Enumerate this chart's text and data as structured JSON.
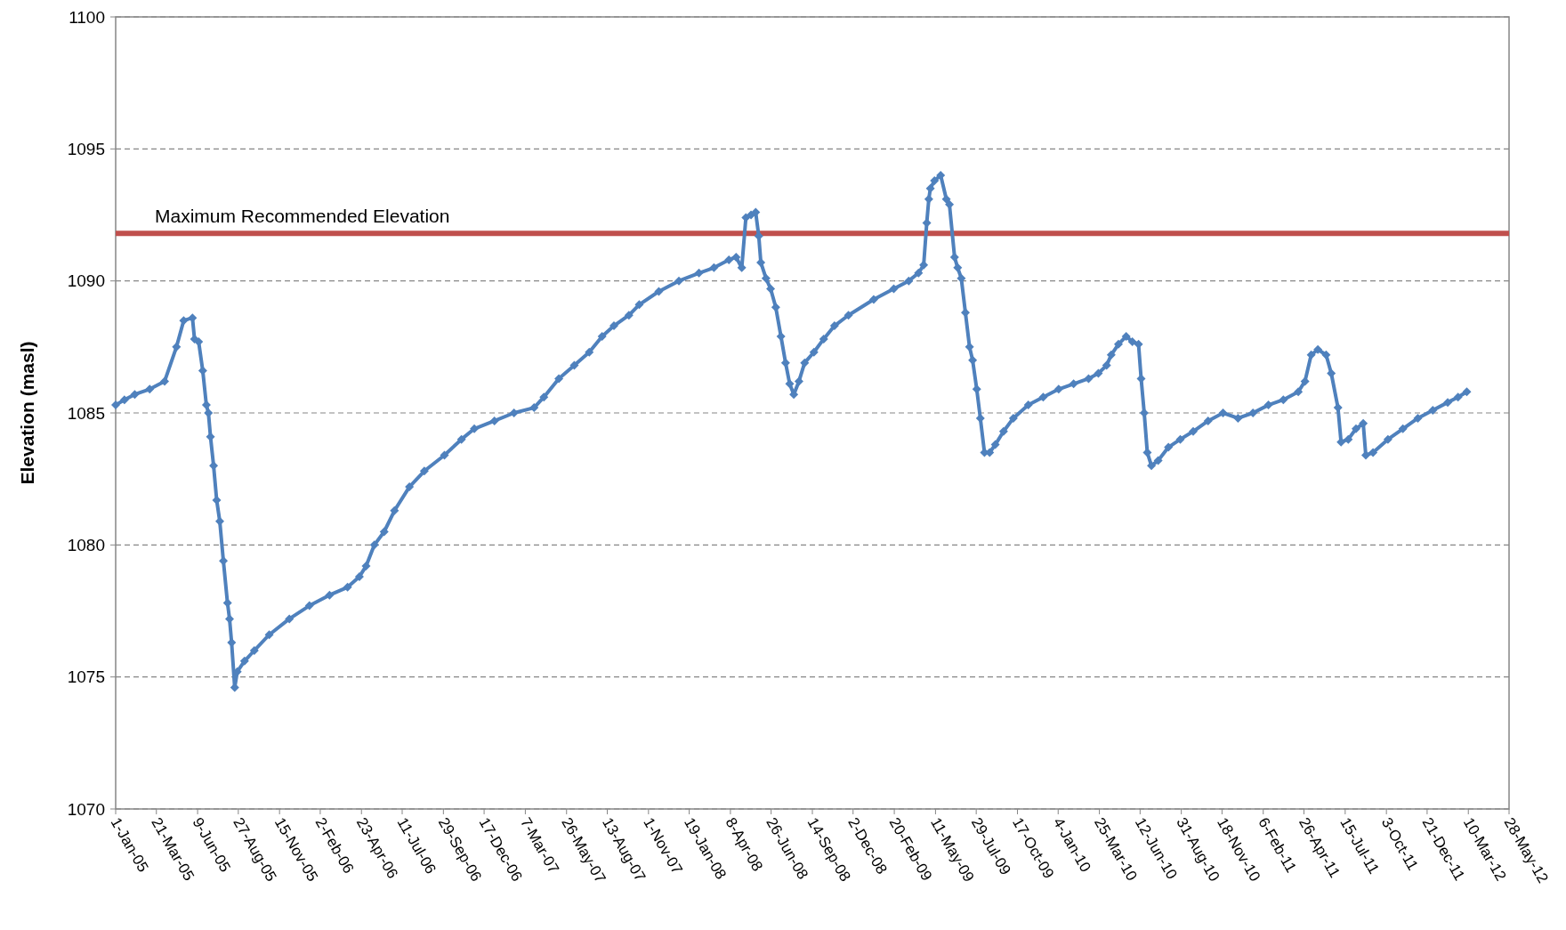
{
  "chart_data": {
    "type": "line",
    "ylabel": "Elevation (masl)",
    "x": [
      "2005-01-01",
      "2005-01-18",
      "2005-02-07",
      "2005-03-08",
      "2005-04-06",
      "2005-04-29",
      "2005-05-13",
      "2005-05-30",
      "2005-06-03",
      "2005-06-11",
      "2005-06-19",
      "2005-06-26",
      "2005-06-30",
      "2005-07-04",
      "2005-07-10",
      "2005-07-16",
      "2005-07-22",
      "2005-07-29",
      "2005-08-06",
      "2005-08-10",
      "2005-08-14",
      "2005-08-20",
      "2005-08-25",
      "2005-09-08",
      "2005-09-27",
      "2005-10-26",
      "2005-12-04",
      "2006-01-12",
      "2006-02-20",
      "2006-03-27",
      "2006-04-19",
      "2006-05-02",
      "2006-05-18",
      "2006-06-06",
      "2006-06-26",
      "2006-07-25",
      "2006-08-23",
      "2006-10-01",
      "2006-11-03",
      "2006-11-28",
      "2007-01-06",
      "2007-02-13",
      "2007-03-24",
      "2007-04-12",
      "2007-05-11",
      "2007-06-10",
      "2007-07-09",
      "2007-08-03",
      "2007-08-26",
      "2007-09-24",
      "2007-10-14",
      "2007-11-21",
      "2007-12-30",
      "2008-02-07",
      "2008-03-07",
      "2008-04-05",
      "2008-04-19",
      "2008-04-30",
      "2008-05-08",
      "2008-05-18",
      "2008-05-27",
      "2008-06-02",
      "2008-06-06",
      "2008-06-16",
      "2008-06-25",
      "2008-07-05",
      "2008-07-15",
      "2008-07-24",
      "2008-08-01",
      "2008-08-09",
      "2008-08-19",
      "2008-08-30",
      "2008-09-17",
      "2008-10-06",
      "2008-10-27",
      "2008-11-23",
      "2009-01-11",
      "2009-02-19",
      "2009-03-20",
      "2009-04-08",
      "2009-04-18",
      "2009-04-24",
      "2009-04-28",
      "2009-05-01",
      "2009-05-09",
      "2009-05-21",
      "2009-06-01",
      "2009-06-07",
      "2009-06-17",
      "2009-06-23",
      "2009-06-30",
      "2009-07-08",
      "2009-07-16",
      "2009-07-22",
      "2009-07-30",
      "2009-08-06",
      "2009-08-14",
      "2009-08-24",
      "2009-09-04",
      "2009-09-20",
      "2009-10-09",
      "2009-11-07",
      "2009-12-06",
      "2010-01-05",
      "2010-02-03",
      "2010-03-04",
      "2010-03-23",
      "2010-04-08",
      "2010-04-17",
      "2010-05-01",
      "2010-05-16",
      "2010-05-28",
      "2010-06-09",
      "2010-06-14",
      "2010-06-20",
      "2010-06-26",
      "2010-07-04",
      "2010-07-17",
      "2010-08-06",
      "2010-08-29",
      "2010-09-23",
      "2010-10-22",
      "2010-11-20",
      "2010-12-19",
      "2011-01-17",
      "2011-02-16",
      "2011-03-17",
      "2011-04-15",
      "2011-04-28",
      "2011-05-10",
      "2011-05-23",
      "2011-06-08",
      "2011-06-18",
      "2011-07-01",
      "2011-07-07",
      "2011-07-21",
      "2011-08-05",
      "2011-08-19",
      "2011-08-24",
      "2011-09-07",
      "2011-10-06",
      "2011-11-04",
      "2011-12-03",
      "2012-01-01",
      "2012-01-30",
      "2012-02-19",
      "2012-03-07"
    ],
    "series": [
      {
        "color": "#4f81bd",
        "values": [
          1085.3,
          1085.5,
          1085.7,
          1085.9,
          1086.2,
          1087.5,
          1088.5,
          1088.6,
          1087.8,
          1087.7,
          1086.6,
          1085.3,
          1085.0,
          1084.1,
          1083.0,
          1081.7,
          1080.9,
          1079.4,
          1077.8,
          1077.2,
          1076.3,
          1074.6,
          1075.2,
          1075.6,
          1076.0,
          1076.6,
          1077.2,
          1077.7,
          1078.1,
          1078.4,
          1078.8,
          1079.2,
          1080.0,
          1080.5,
          1081.3,
          1082.2,
          1082.8,
          1083.4,
          1084.0,
          1084.4,
          1084.7,
          1085.0,
          1085.2,
          1085.6,
          1086.3,
          1086.8,
          1087.3,
          1087.9,
          1088.3,
          1088.7,
          1089.1,
          1089.6,
          1090.0,
          1090.3,
          1090.5,
          1090.8,
          1090.9,
          1090.5,
          1092.4,
          1092.5,
          1092.6,
          1091.7,
          1090.7,
          1090.1,
          1089.7,
          1089.0,
          1087.9,
          1086.9,
          1086.1,
          1085.7,
          1086.2,
          1086.9,
          1087.3,
          1087.8,
          1088.3,
          1088.7,
          1089.3,
          1089.7,
          1090.0,
          1090.3,
          1090.6,
          1092.2,
          1093.1,
          1093.5,
          1093.8,
          1094.0,
          1093.1,
          1092.9,
          1090.9,
          1090.5,
          1090.1,
          1088.8,
          1087.5,
          1087.0,
          1085.9,
          1084.8,
          1083.5,
          1083.5,
          1083.8,
          1084.3,
          1084.8,
          1085.3,
          1085.6,
          1085.9,
          1086.1,
          1086.3,
          1086.5,
          1086.8,
          1087.2,
          1087.6,
          1087.9,
          1087.7,
          1087.6,
          1086.3,
          1085.0,
          1083.5,
          1083.0,
          1083.2,
          1083.7,
          1084.0,
          1084.3,
          1084.7,
          1085.0,
          1084.8,
          1085.0,
          1085.3,
          1085.5,
          1085.8,
          1086.2,
          1087.2,
          1087.4,
          1087.2,
          1086.5,
          1085.2,
          1083.9,
          1084.0,
          1084.4,
          1084.6,
          1083.4,
          1083.5,
          1084.0,
          1084.4,
          1084.8,
          1085.1,
          1085.4,
          1085.6,
          1085.8
        ]
      }
    ],
    "xlim": [
      "2005-01-01",
      "2012-05-28"
    ],
    "xticks": [
      {
        "value": "2005-01-01",
        "label": "1-Jan-05"
      },
      {
        "value": "2005-03-21",
        "label": "21-Mar-05"
      },
      {
        "value": "2005-06-09",
        "label": "9-Jun-05"
      },
      {
        "value": "2005-08-27",
        "label": "27-Aug-05"
      },
      {
        "value": "2005-11-15",
        "label": "15-Nov-05"
      },
      {
        "value": "2006-02-02",
        "label": "2-Feb-06"
      },
      {
        "value": "2006-04-23",
        "label": "23-Apr-06"
      },
      {
        "value": "2006-07-11",
        "label": "11-Jul-06"
      },
      {
        "value": "2006-09-29",
        "label": "29-Sep-06"
      },
      {
        "value": "2006-12-17",
        "label": "17-Dec-06"
      },
      {
        "value": "2007-03-07",
        "label": "7-Mar-07"
      },
      {
        "value": "2007-05-26",
        "label": "26-May-07"
      },
      {
        "value": "2007-08-13",
        "label": "13-Aug-07"
      },
      {
        "value": "2007-11-01",
        "label": "1-Nov-07"
      },
      {
        "value": "2008-01-19",
        "label": "19-Jan-08"
      },
      {
        "value": "2008-04-08",
        "label": "8-Apr-08"
      },
      {
        "value": "2008-06-26",
        "label": "26-Jun-08"
      },
      {
        "value": "2008-09-14",
        "label": "14-Sep-08"
      },
      {
        "value": "2008-12-02",
        "label": "2-Dec-08"
      },
      {
        "value": "2009-02-20",
        "label": "20-Feb-09"
      },
      {
        "value": "2009-05-11",
        "label": "11-May-09"
      },
      {
        "value": "2009-07-29",
        "label": "29-Jul-09"
      },
      {
        "value": "2009-10-17",
        "label": "17-Oct-09"
      },
      {
        "value": "2010-01-04",
        "label": "4-Jan-10"
      },
      {
        "value": "2010-03-25",
        "label": "25-Mar-10"
      },
      {
        "value": "2010-06-12",
        "label": "12-Jun-10"
      },
      {
        "value": "2010-08-31",
        "label": "31-Aug-10"
      },
      {
        "value": "2010-11-18",
        "label": "18-Nov-10"
      },
      {
        "value": "2011-02-06",
        "label": "6-Feb-11"
      },
      {
        "value": "2011-04-26",
        "label": "26-Apr-11"
      },
      {
        "value": "2011-07-15",
        "label": "15-Jul-11"
      },
      {
        "value": "2011-10-03",
        "label": "3-Oct-11"
      },
      {
        "value": "2011-12-21",
        "label": "21-Dec-11"
      },
      {
        "value": "2012-03-10",
        "label": "10-Mar-12"
      },
      {
        "value": "2012-05-28",
        "label": "28-May-12"
      }
    ],
    "ylim": [
      1070,
      1100
    ],
    "yticks": [
      1070,
      1075,
      1080,
      1085,
      1090,
      1095,
      1100
    ],
    "ref_lines": [
      {
        "axis": "y",
        "value": 1091.8,
        "label": "Maximum Recommended Elevation",
        "color": "#c0504d"
      }
    ],
    "grid": "y",
    "marker": "diamond",
    "line_style": "solid"
  }
}
